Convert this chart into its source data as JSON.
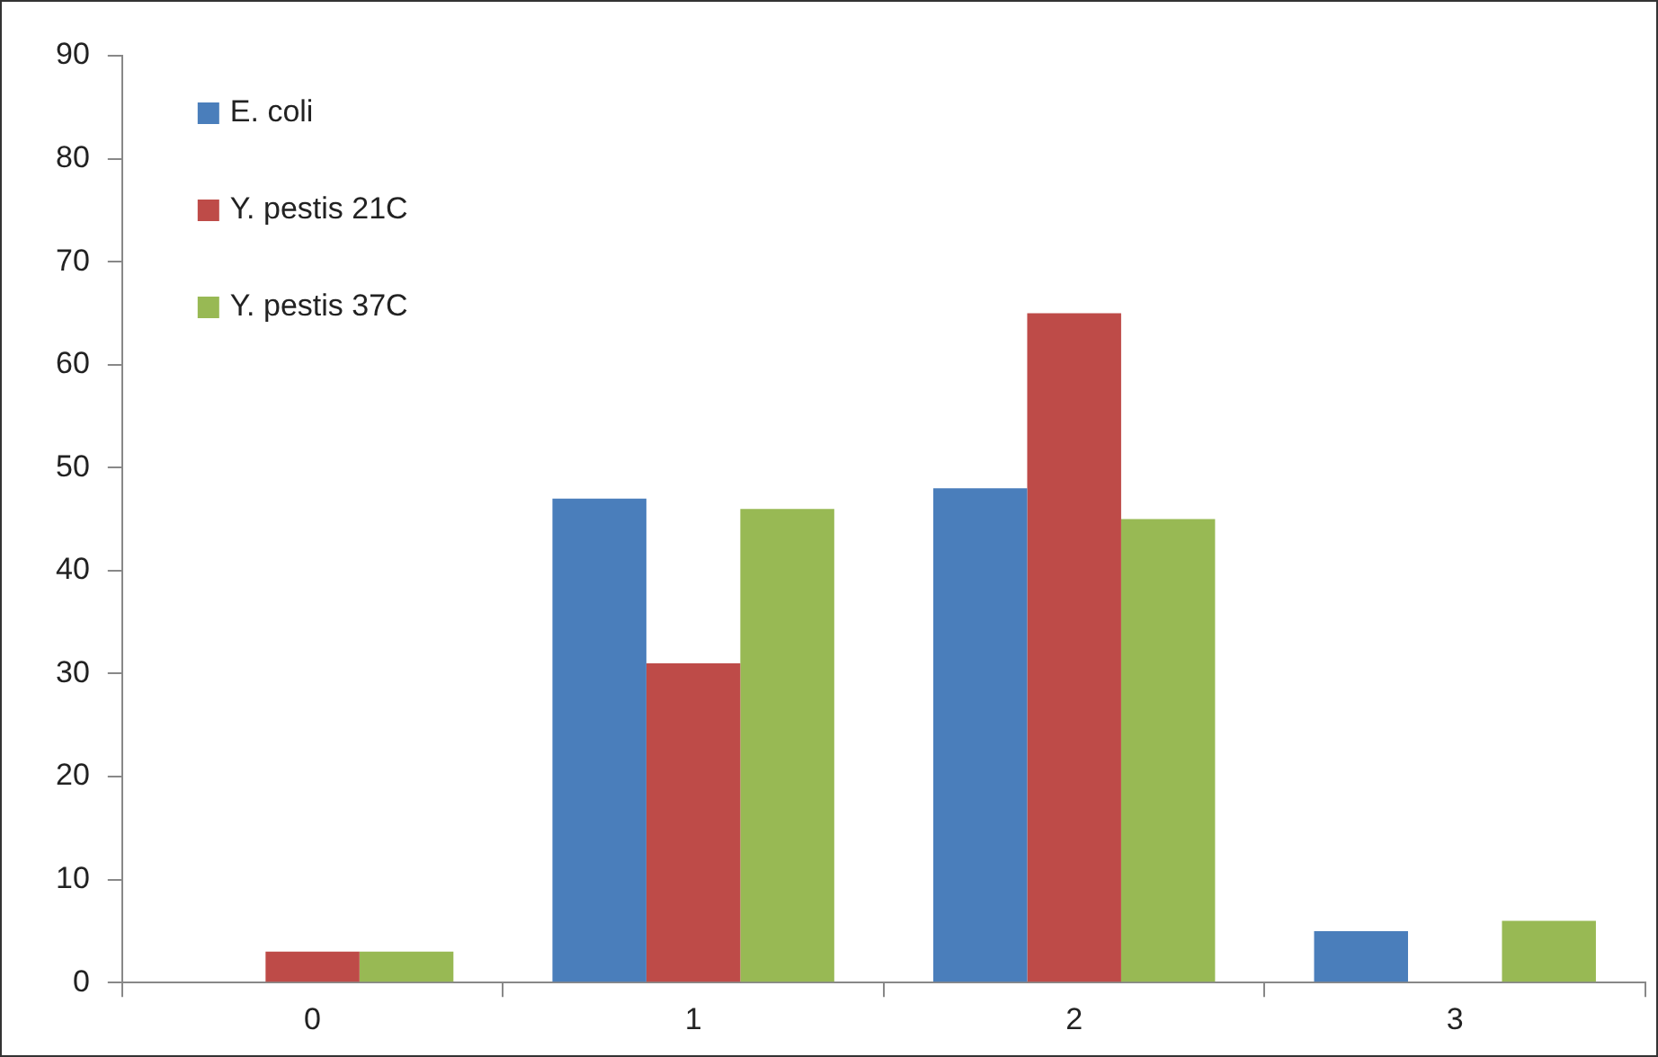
{
  "chart_data": {
    "type": "bar",
    "categories": [
      "0",
      "1",
      "2",
      "3"
    ],
    "series": [
      {
        "name": "E. coli",
        "color": "#4a7ebb",
        "values": [
          0,
          47,
          48,
          5
        ]
      },
      {
        "name": "Y. pestis 21C",
        "color": "#be4b48",
        "values": [
          3,
          31,
          65,
          0
        ]
      },
      {
        "name": "Y. pestis 37C",
        "color": "#98b954",
        "values": [
          3,
          46,
          45,
          6
        ]
      }
    ],
    "ylim": [
      0,
      90
    ],
    "yticks": [
      0,
      10,
      20,
      30,
      40,
      50,
      60,
      70,
      80,
      90
    ],
    "grid": false,
    "legend": "top left"
  }
}
